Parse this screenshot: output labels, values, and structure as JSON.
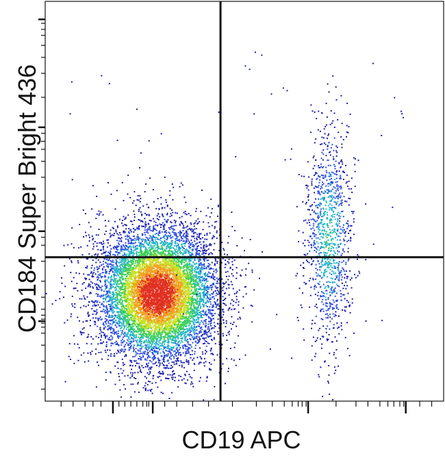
{
  "chart_data": {
    "type": "scatter",
    "subtype": "flow-cytometry-density-dot-plot",
    "title": "",
    "xlabel": "CD19 APC",
    "ylabel": "CD184 Super Bright 436",
    "x_scale": "biexponential (decade ticks, no tick labels)",
    "y_scale": "biexponential (decade ticks, no tick labels)",
    "tick_labels_shown": false,
    "grid": false,
    "legend": "none",
    "density_colormap": [
      "#1a1aa8",
      "#2b4be0",
      "#23b4c8",
      "#3ccf5a",
      "#c8e024",
      "#f0a020",
      "#e03020"
    ],
    "gates": {
      "type": "quadrant",
      "vertical_line_x_fraction_of_axis": 0.44,
      "horizontal_line_y_fraction_of_axis": 0.36
    },
    "populations": [
      {
        "description": "CD19- lymphocytes (dense, mostly low CD184)",
        "center_x_fraction": 0.28,
        "center_y_fraction": 0.27,
        "spread_x": 0.075,
        "spread_y": 0.085,
        "relative_density": "very high"
      },
      {
        "description": "CD19+ B cells (CD184 low to high)",
        "center_x_fraction": 0.71,
        "center_y_fraction": 0.41,
        "spread_x": 0.03,
        "spread_y": 0.14,
        "relative_density": "moderate"
      }
    ]
  }
}
